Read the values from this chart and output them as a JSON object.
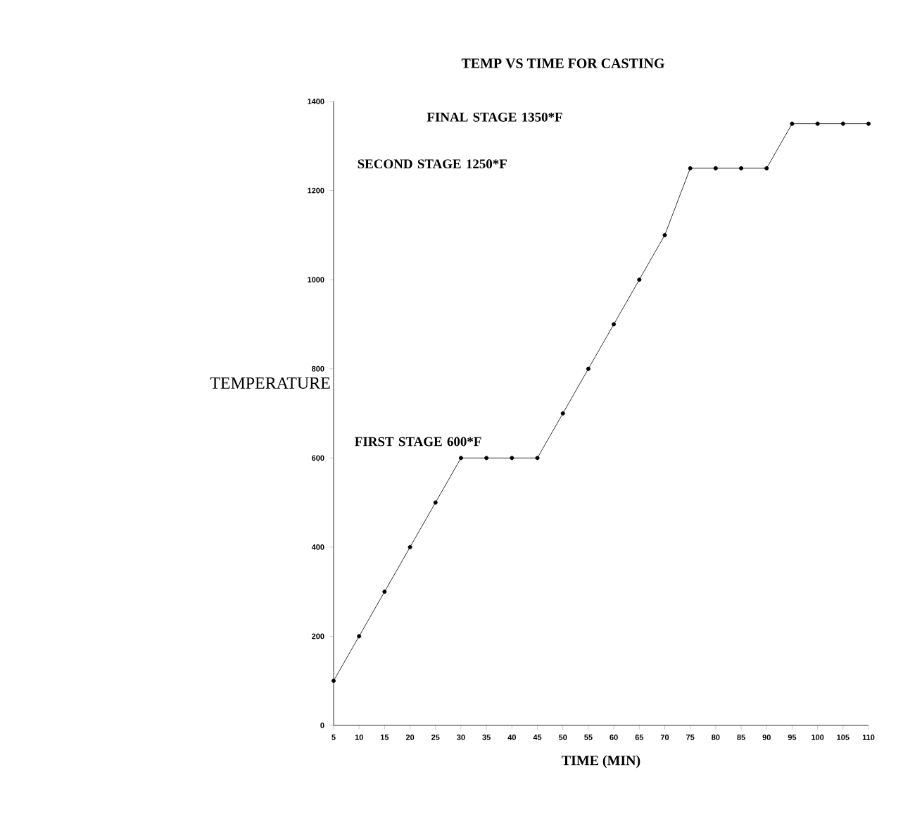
{
  "chart_data": {
    "type": "line",
    "title": "TEMP VS TIME FOR CASTING",
    "xlabel": "TIME (MIN)",
    "ylabel": "TEMPERATURE",
    "x": [
      5,
      10,
      15,
      20,
      25,
      30,
      35,
      40,
      45,
      50,
      55,
      60,
      65,
      70,
      75,
      80,
      85,
      90,
      95,
      100,
      105,
      110
    ],
    "values": [
      100,
      200,
      300,
      400,
      500,
      600,
      600,
      600,
      600,
      700,
      800,
      900,
      1000,
      1100,
      1250,
      1250,
      1250,
      1250,
      1350,
      1350,
      1350,
      1350
    ],
    "color": "#000000",
    "marker": "circle",
    "line_style": "solid",
    "xlim": [
      5,
      110
    ],
    "xticks": [
      5,
      10,
      15,
      20,
      25,
      30,
      35,
      40,
      45,
      50,
      55,
      60,
      65,
      70,
      75,
      80,
      85,
      90,
      95,
      100,
      105,
      110
    ],
    "ylim": [
      0,
      1400
    ],
    "yticks": [
      0,
      200,
      400,
      600,
      800,
      1000,
      1200,
      1400
    ],
    "annotations": [
      "FIRST STAGE 600*F",
      "SECOND STAGE 1250*F",
      "FINAL STAGE 1350*F"
    ]
  }
}
